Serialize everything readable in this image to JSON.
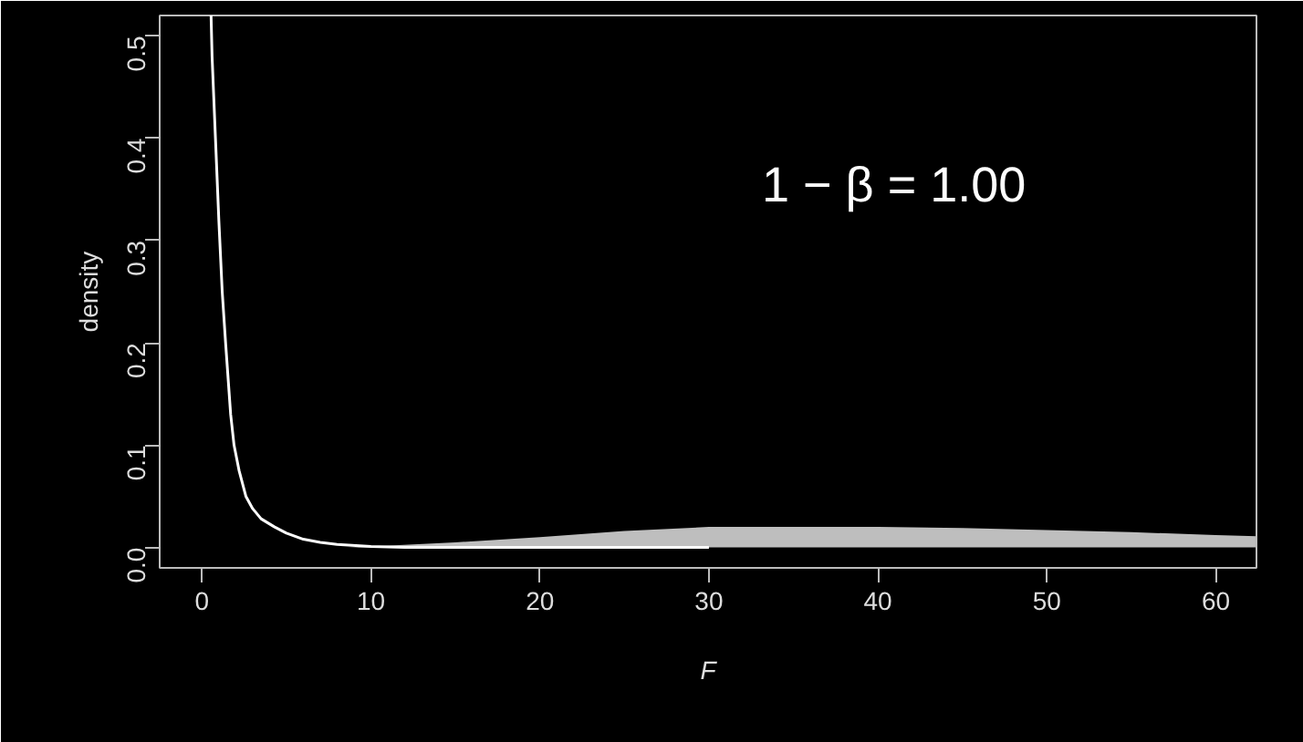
{
  "chart_data": {
    "type": "line",
    "xlabel": "F",
    "ylabel": "density",
    "annotations": [
      "1 − β = 1.00"
    ],
    "xlim": [
      -2.5,
      62.4
    ],
    "ylim": [
      -0.02,
      0.52
    ],
    "xticks": [
      0,
      10,
      20,
      30,
      40,
      50,
      60
    ],
    "yticks": [
      {
        "value": 0,
        "label": "0.0"
      },
      {
        "value": 0.1,
        "label": "0.1"
      },
      {
        "value": 0.2,
        "label": "0.2"
      },
      {
        "value": 0.3,
        "label": "0.3"
      },
      {
        "value": 0.4,
        "label": "0.4"
      },
      {
        "value": 0.5,
        "label": "0.5"
      }
    ],
    "grid": false,
    "series": [
      {
        "type": "area",
        "color": "#bebebe",
        "x": [
          8.6,
          10,
          15,
          20,
          25,
          30,
          35,
          40,
          45,
          50,
          55,
          60,
          62.4
        ],
        "values": [
          0,
          0.001,
          0.005,
          0.01,
          0.016,
          0.02,
          0.02,
          0.02,
          0.019,
          0.017,
          0.015,
          0.012,
          0.011
        ]
      },
      {
        "color": "#ffffff",
        "x": [
          0.54,
          0.6,
          0.7,
          0.8,
          1.0,
          1.2,
          1.4,
          1.7,
          1.9,
          2.2,
          2.6,
          3.0,
          3.5,
          4.3,
          5,
          6,
          7,
          8,
          10,
          12,
          15,
          20,
          25,
          30
        ],
        "values": [
          0.52,
          0.48,
          0.44,
          0.4,
          0.32,
          0.25,
          0.2,
          0.13,
          0.1,
          0.075,
          0.05,
          0.038,
          0.028,
          0.02,
          0.014,
          0.008,
          0.005,
          0.003,
          0.001,
          0,
          0,
          0,
          0,
          0
        ]
      }
    ]
  }
}
